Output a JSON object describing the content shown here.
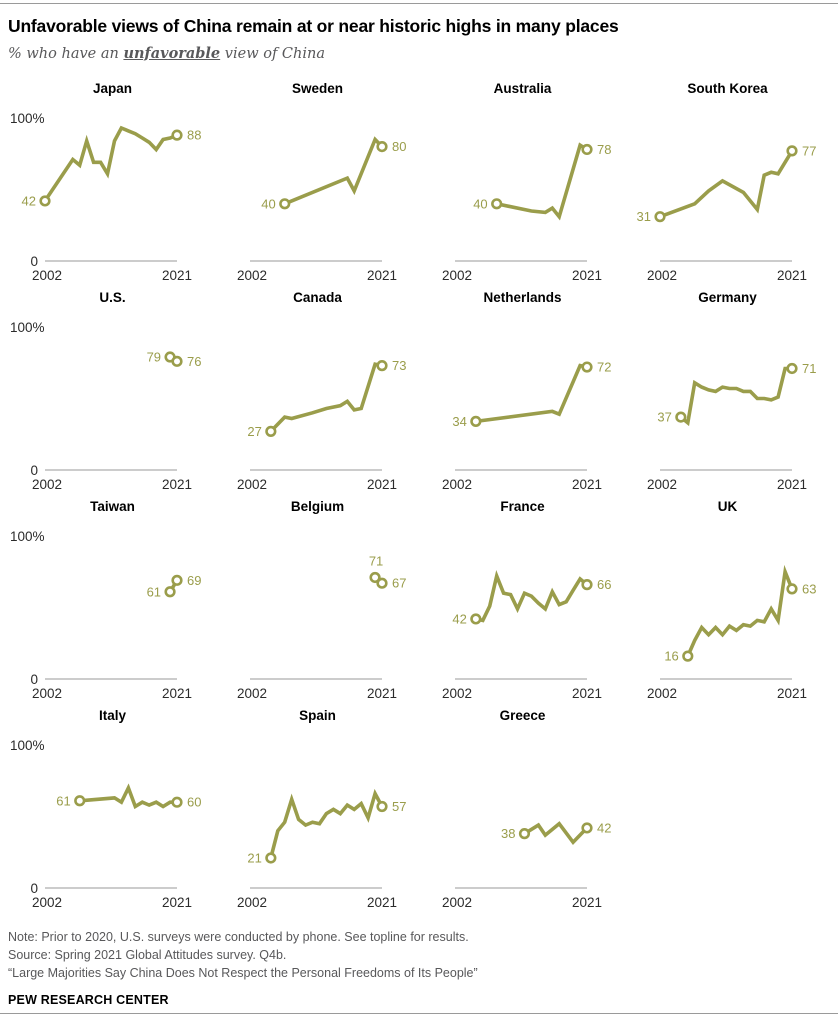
{
  "header": {
    "title": "Unfavorable views of China remain at or near historic highs in many places",
    "subtitle_prefix": "% who have an ",
    "subtitle_emphasis": "unfavorable",
    "subtitle_suffix": " view of China"
  },
  "footer": {
    "note": "Note: Prior to 2020, U.S. surveys were conducted by phone. See topline for results.",
    "source": "Source: Spring 2021 Global Attitudes survey. Q4b.",
    "report": "“Large Majorities Say China Does Not Respect the Personal Freedoms of Its People”",
    "brand": "PEW RESEARCH CENTER"
  },
  "style": {
    "line_color": "#9a9d4b",
    "value_label_color": "#9a9d4b",
    "axis_text_color": "#2b2b2b",
    "baseline_color": "#bcbcbc",
    "marker_fill": "#ffffff"
  },
  "chart_data": {
    "type": "line",
    "title": "Unfavorable views of China remain at or near historic highs in many places",
    "ylabel": "% unfavorable",
    "axis": {
      "y_top_label": "100%",
      "y_bottom_label": "0",
      "x_start_label": "2002",
      "x_end_label": "2021",
      "x_min": 2002,
      "x_max": 2021,
      "y_min": 0,
      "y_max": 100,
      "grid": false
    },
    "charts": [
      {
        "country": "Japan",
        "start_label": "42",
        "end_label": "88",
        "show_y_axis": true,
        "start_label_pos": "left",
        "points": [
          [
            2002,
            42
          ],
          [
            2006,
            71
          ],
          [
            2007,
            67
          ],
          [
            2008,
            84
          ],
          [
            2009,
            69
          ],
          [
            2010,
            69
          ],
          [
            2011,
            61
          ],
          [
            2012,
            84
          ],
          [
            2013,
            93
          ],
          [
            2014,
            91
          ],
          [
            2015,
            89
          ],
          [
            2016,
            86
          ],
          [
            2017,
            83
          ],
          [
            2018,
            78
          ],
          [
            2019,
            85
          ],
          [
            2020,
            86
          ],
          [
            2021,
            88
          ]
        ]
      },
      {
        "country": "Sweden",
        "start_label": "40",
        "end_label": "80",
        "show_y_axis": false,
        "start_label_pos": "left",
        "points": [
          [
            2007,
            40
          ],
          [
            2016,
            58
          ],
          [
            2017,
            49
          ],
          [
            2020,
            85
          ],
          [
            2021,
            80
          ]
        ]
      },
      {
        "country": "Australia",
        "start_label": "40",
        "end_label": "78",
        "show_y_axis": false,
        "start_label_pos": "left",
        "points": [
          [
            2008,
            40
          ],
          [
            2013,
            35
          ],
          [
            2015,
            34
          ],
          [
            2016,
            37
          ],
          [
            2017,
            31
          ],
          [
            2020,
            81
          ],
          [
            2021,
            78
          ]
        ]
      },
      {
        "country": "South Korea",
        "start_label": "31",
        "end_label": "77",
        "show_y_axis": false,
        "start_label_pos": "left",
        "points": [
          [
            2002,
            31
          ],
          [
            2007,
            40
          ],
          [
            2009,
            49
          ],
          [
            2011,
            56
          ],
          [
            2014,
            48
          ],
          [
            2016,
            36
          ],
          [
            2017,
            60
          ],
          [
            2018,
            62
          ],
          [
            2019,
            61
          ],
          [
            2021,
            77
          ]
        ]
      },
      {
        "country": "U.S.",
        "start_label": "79",
        "end_label": "76",
        "show_y_axis": true,
        "start_label_pos": "left",
        "points": [
          [
            2020,
            79
          ],
          [
            2021,
            76
          ]
        ]
      },
      {
        "country": "Canada",
        "start_label": "27",
        "end_label": "73",
        "show_y_axis": false,
        "start_label_pos": "left",
        "points": [
          [
            2005,
            27
          ],
          [
            2007,
            37
          ],
          [
            2008,
            36
          ],
          [
            2011,
            40
          ],
          [
            2013,
            43
          ],
          [
            2015,
            45
          ],
          [
            2016,
            48
          ],
          [
            2017,
            42
          ],
          [
            2018,
            43
          ],
          [
            2020,
            74
          ],
          [
            2021,
            73
          ]
        ]
      },
      {
        "country": "Netherlands",
        "start_label": "34",
        "end_label": "72",
        "show_y_axis": false,
        "start_label_pos": "left",
        "points": [
          [
            2005,
            34
          ],
          [
            2016,
            41
          ],
          [
            2017,
            39
          ],
          [
            2020,
            73
          ],
          [
            2021,
            72
          ]
        ]
      },
      {
        "country": "Germany",
        "start_label": "37",
        "end_label": "71",
        "show_y_axis": false,
        "start_label_pos": "left",
        "points": [
          [
            2005,
            37
          ],
          [
            2006,
            33
          ],
          [
            2007,
            61
          ],
          [
            2008,
            58
          ],
          [
            2009,
            56
          ],
          [
            2010,
            55
          ],
          [
            2011,
            58
          ],
          [
            2012,
            57
          ],
          [
            2013,
            57
          ],
          [
            2014,
            55
          ],
          [
            2015,
            55
          ],
          [
            2016,
            50
          ],
          [
            2017,
            50
          ],
          [
            2018,
            49
          ],
          [
            2019,
            51
          ],
          [
            2020,
            71
          ],
          [
            2021,
            71
          ]
        ]
      },
      {
        "country": "Taiwan",
        "start_label": "61",
        "end_label": "69",
        "show_y_axis": true,
        "start_label_pos": "left",
        "points": [
          [
            2020,
            61
          ],
          [
            2021,
            69
          ]
        ]
      },
      {
        "country": "Belgium",
        "start_label": "71",
        "end_label": "67",
        "show_y_axis": false,
        "start_label_pos": "above",
        "points": [
          [
            2020,
            71
          ],
          [
            2021,
            67
          ]
        ]
      },
      {
        "country": "France",
        "start_label": "42",
        "end_label": "66",
        "show_y_axis": false,
        "start_label_pos": "left",
        "points": [
          [
            2005,
            42
          ],
          [
            2006,
            41
          ],
          [
            2007,
            51
          ],
          [
            2008,
            72
          ],
          [
            2009,
            60
          ],
          [
            2010,
            59
          ],
          [
            2011,
            49
          ],
          [
            2012,
            60
          ],
          [
            2013,
            58
          ],
          [
            2014,
            53
          ],
          [
            2015,
            49
          ],
          [
            2016,
            61
          ],
          [
            2017,
            52
          ],
          [
            2018,
            54
          ],
          [
            2019,
            62
          ],
          [
            2020,
            70
          ],
          [
            2021,
            66
          ]
        ]
      },
      {
        "country": "UK",
        "start_label": "16",
        "end_label": "63",
        "show_y_axis": false,
        "start_label_pos": "left",
        "points": [
          [
            2006,
            16
          ],
          [
            2007,
            27
          ],
          [
            2008,
            36
          ],
          [
            2009,
            31
          ],
          [
            2010,
            36
          ],
          [
            2011,
            31
          ],
          [
            2012,
            37
          ],
          [
            2013,
            34
          ],
          [
            2014,
            38
          ],
          [
            2015,
            37
          ],
          [
            2016,
            41
          ],
          [
            2017,
            40
          ],
          [
            2018,
            49
          ],
          [
            2019,
            41
          ],
          [
            2020,
            75
          ],
          [
            2021,
            63
          ]
        ]
      },
      {
        "country": "Italy",
        "start_label": "61",
        "end_label": "60",
        "show_y_axis": true,
        "start_label_pos": "left",
        "points": [
          [
            2007,
            61
          ],
          [
            2012,
            63
          ],
          [
            2013,
            60
          ],
          [
            2014,
            70
          ],
          [
            2015,
            57
          ],
          [
            2016,
            60
          ],
          [
            2017,
            58
          ],
          [
            2018,
            60
          ],
          [
            2019,
            57
          ],
          [
            2020,
            60
          ],
          [
            2021,
            60
          ]
        ]
      },
      {
        "country": "Spain",
        "start_label": "21",
        "end_label": "57",
        "show_y_axis": false,
        "start_label_pos": "left",
        "points": [
          [
            2005,
            21
          ],
          [
            2006,
            40
          ],
          [
            2007,
            46
          ],
          [
            2008,
            62
          ],
          [
            2009,
            48
          ],
          [
            2010,
            44
          ],
          [
            2011,
            46
          ],
          [
            2012,
            45
          ],
          [
            2013,
            52
          ],
          [
            2014,
            55
          ],
          [
            2015,
            52
          ],
          [
            2016,
            58
          ],
          [
            2017,
            55
          ],
          [
            2018,
            59
          ],
          [
            2019,
            49
          ],
          [
            2020,
            66
          ],
          [
            2021,
            57
          ]
        ]
      },
      {
        "country": "Greece",
        "start_label": "38",
        "end_label": "42",
        "show_y_axis": false,
        "start_label_pos": "left",
        "points": [
          [
            2012,
            38
          ],
          [
            2014,
            44
          ],
          [
            2015,
            37
          ],
          [
            2017,
            45
          ],
          [
            2019,
            32
          ],
          [
            2021,
            42
          ]
        ]
      }
    ]
  }
}
